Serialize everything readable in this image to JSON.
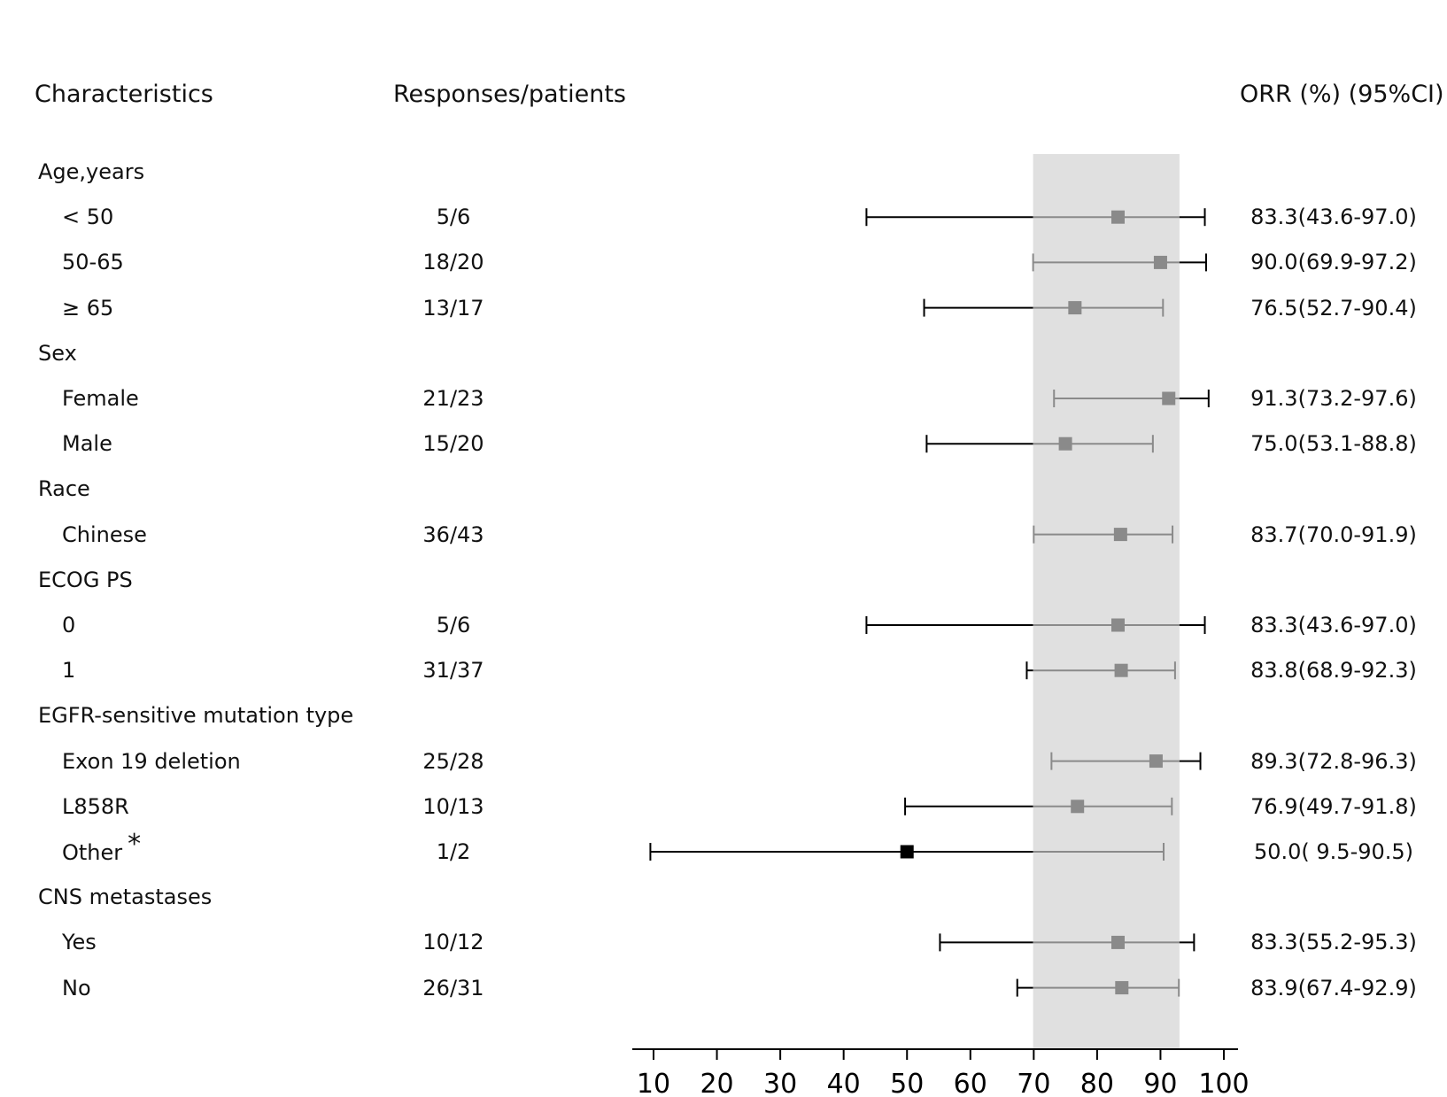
{
  "headers": {
    "characteristics": "Characteristics",
    "responses": "Responses/patients",
    "orr": "ORR (%) (95%CI)"
  },
  "rows": [
    {
      "label": "Age,years",
      "group": true
    },
    {
      "label": "< 50",
      "responses": "5/6",
      "orr_text": "83.3(43.6-97.0)"
    },
    {
      "label": "50-65",
      "responses": "18/20",
      "orr_text": "90.0(69.9-97.2)"
    },
    {
      "label": "≥ 65",
      "responses": "13/17",
      "orr_text": "76.5(52.7-90.4)"
    },
    {
      "label": "Sex",
      "group": true
    },
    {
      "label": "Female",
      "responses": "21/23",
      "orr_text": "91.3(73.2-97.6)"
    },
    {
      "label": "Male",
      "responses": "15/20",
      "orr_text": "75.0(53.1-88.8)"
    },
    {
      "label": "Race",
      "group": true
    },
    {
      "label": "Chinese",
      "responses": "36/43",
      "orr_text": "83.7(70.0-91.9)"
    },
    {
      "label": "ECOG PS",
      "group": true
    },
    {
      "label": "0",
      "responses": "5/6",
      "orr_text": "83.3(43.6-97.0)"
    },
    {
      "label": "1",
      "responses": "31/37",
      "orr_text": "83.8(68.9-92.3)"
    },
    {
      "label": "EGFR-sensitive mutation type",
      "group": true
    },
    {
      "label": "Exon 19 deletion",
      "responses": "25/28",
      "orr_text": "89.3(72.8-96.3)"
    },
    {
      "label": "L858R",
      "responses": "10/13",
      "orr_text": "76.9(49.7-91.8)"
    },
    {
      "label": "Other",
      "footnote": "*",
      "responses": "1/2",
      "orr_text": "50.0( 9.5-90.5)"
    },
    {
      "label": "CNS metastases",
      "group": true
    },
    {
      "label": "Yes",
      "responses": "10/12",
      "orr_text": "83.3(55.2-95.3)"
    },
    {
      "label": "No",
      "responses": "26/31",
      "orr_text": "83.9(67.4-92.9)"
    }
  ],
  "chart_data": {
    "type": "forest",
    "xlim": [
      7,
      102
    ],
    "ticks": [
      10,
      20,
      30,
      40,
      50,
      60,
      70,
      80,
      90,
      100
    ],
    "reference_band": [
      69.9,
      93.0
    ],
    "colors": {
      "band": "#e0e0e0",
      "marker_gray": "#8a8a8a",
      "line_gray": "#8a8a8a",
      "marker_black": "#000000",
      "axis": "#000000"
    },
    "points": [
      {
        "category": "< 50",
        "orr": 83.3,
        "ci_low": 43.6,
        "ci_high": 97.0
      },
      {
        "category": "50-65",
        "orr": 90.0,
        "ci_low": 69.9,
        "ci_high": 97.2
      },
      {
        "category": "≥ 65",
        "orr": 76.5,
        "ci_low": 52.7,
        "ci_high": 90.4
      },
      {
        "category": "Female",
        "orr": 91.3,
        "ci_low": 73.2,
        "ci_high": 97.6
      },
      {
        "category": "Male",
        "orr": 75.0,
        "ci_low": 53.1,
        "ci_high": 88.8
      },
      {
        "category": "Chinese",
        "orr": 83.7,
        "ci_low": 70.0,
        "ci_high": 91.9
      },
      {
        "category": "0",
        "orr": 83.3,
        "ci_low": 43.6,
        "ci_high": 97.0
      },
      {
        "category": "1",
        "orr": 83.8,
        "ci_low": 68.9,
        "ci_high": 92.3
      },
      {
        "category": "Exon 19 deletion",
        "orr": 89.3,
        "ci_low": 72.8,
        "ci_high": 96.3
      },
      {
        "category": "L858R",
        "orr": 76.9,
        "ci_low": 49.7,
        "ci_high": 91.8
      },
      {
        "category": "Other",
        "orr": 50.0,
        "ci_low": 9.5,
        "ci_high": 90.5,
        "highlight": true
      },
      {
        "category": "Yes",
        "orr": 83.3,
        "ci_low": 55.2,
        "ci_high": 95.3
      },
      {
        "category": "No",
        "orr": 83.9,
        "ci_low": 67.4,
        "ci_high": 92.9
      }
    ]
  }
}
